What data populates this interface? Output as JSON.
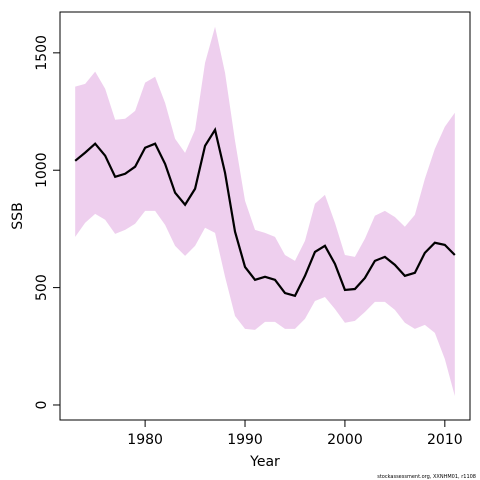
{
  "chart_data": {
    "type": "line",
    "x": [
      1973,
      1974,
      1975,
      1976,
      1977,
      1978,
      1979,
      1980,
      1981,
      1982,
      1983,
      1984,
      1985,
      1986,
      1987,
      1988,
      1989,
      1990,
      1991,
      1992,
      1993,
      1994,
      1995,
      1996,
      1997,
      1998,
      1999,
      2000,
      2001,
      2002,
      2003,
      2004,
      2005,
      2006,
      2007,
      2008,
      2009,
      2010,
      2011
    ],
    "values": [
      1040,
      1075,
      1113,
      1062,
      972,
      985,
      1015,
      1096,
      1113,
      1027,
      904,
      853,
      921,
      1104,
      1172,
      989,
      738,
      588,
      533,
      546,
      533,
      477,
      465,
      550,
      652,
      678,
      601,
      490,
      494,
      541,
      614,
      631,
      597,
      550,
      563,
      648,
      691,
      682,
      639
    ],
    "upper": [
      1356,
      1368,
      1420,
      1347,
      1215,
      1219,
      1253,
      1373,
      1398,
      1287,
      1134,
      1074,
      1172,
      1458,
      1611,
      1415,
      1125,
      870,
      746,
      733,
      716,
      639,
      614,
      699,
      857,
      895,
      776,
      639,
      631,
      708,
      806,
      827,
      801,
      759,
      810,
      963,
      1091,
      1185,
      1245
    ],
    "lower": [
      716,
      776,
      814,
      789,
      729,
      746,
      772,
      827,
      827,
      767,
      678,
      635,
      678,
      755,
      733,
      546,
      379,
      324,
      320,
      354,
      354,
      324,
      324,
      367,
      443,
      460,
      409,
      350,
      358,
      396,
      439,
      439,
      405,
      350,
      324,
      341,
      307,
      196,
      38
    ],
    "color": "#000000",
    "band_color": "#eecfee",
    "xlabel": "Year",
    "ylabel": "SSB",
    "xlim": [
      1971.48,
      2012.52
    ],
    "ylim": [
      -64,
      1674
    ],
    "xticks": [
      1980,
      1990,
      2000,
      2010
    ],
    "yticks": [
      0,
      500,
      1000,
      1500
    ],
    "footnote": "stockassessment.org, XXNHM01, r1108"
  }
}
